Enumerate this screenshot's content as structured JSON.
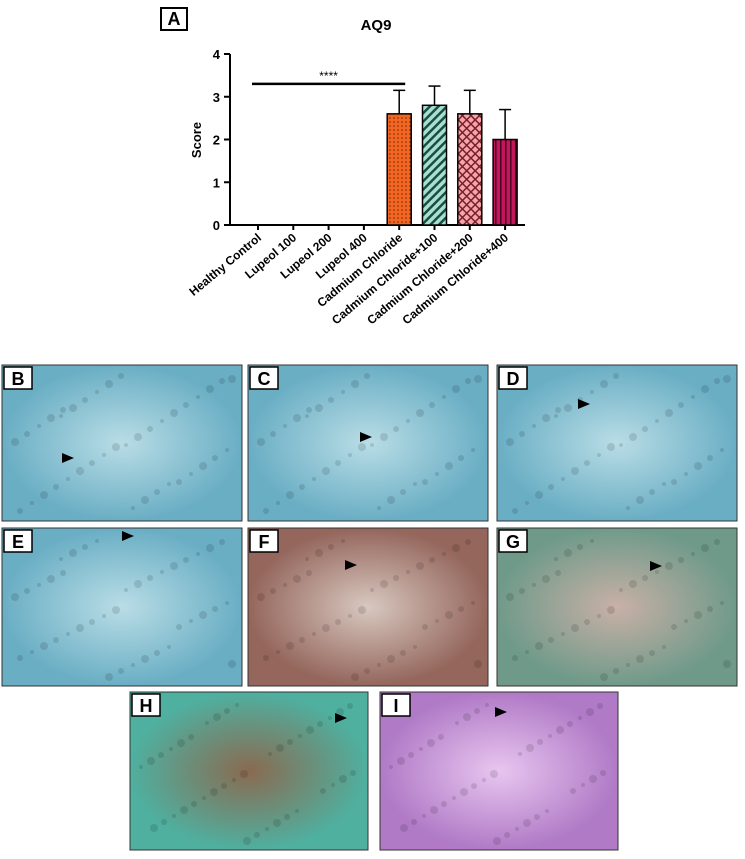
{
  "chart_data": {
    "type": "bar",
    "panel_label": "A",
    "title": "AQ9",
    "y_label": "Score",
    "categories": [
      "Healthy Control",
      "Lupeol 100",
      "Lupeol 200",
      "Lupeol 400",
      "Cadmium Chloride",
      "Cadmium Chloride+100",
      "Cadmium Chloride+200",
      "Cadmium Chloride+400"
    ],
    "values": [
      0,
      0,
      0,
      0,
      2.6,
      2.8,
      2.6,
      2.0
    ],
    "errors": [
      null,
      null,
      null,
      null,
      0.55,
      0.45,
      0.55,
      0.7
    ],
    "colors": [
      "#000000",
      "#000000",
      "#000000",
      "#000000",
      "#f26522",
      "#a8e0d0",
      "#f4a6a6",
      "#c2185b"
    ],
    "hatches": [
      null,
      null,
      null,
      null,
      "dots",
      "diagonal",
      "crosshatch",
      "vertical"
    ],
    "ylim": [
      0,
      4
    ],
    "yticks": [
      0,
      1,
      2,
      3,
      4
    ],
    "significance": {
      "label": "****",
      "y": 3.3,
      "span": [
        0,
        4
      ]
    }
  },
  "panels": [
    {
      "label": "B"
    },
    {
      "label": "C"
    },
    {
      "label": "D"
    },
    {
      "label": "E"
    },
    {
      "label": "F"
    },
    {
      "label": "G"
    },
    {
      "label": "H"
    },
    {
      "label": "I"
    }
  ]
}
